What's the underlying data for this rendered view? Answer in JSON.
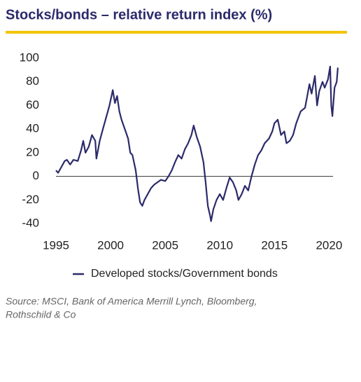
{
  "chart_data": {
    "type": "line",
    "title": "Stocks/bonds – relative return index (%)",
    "source": "Source: MSCI, Bank of America Merrill Lynch, Bloomberg,",
    "source_2": "Rothschild & Co",
    "xlim": [
      1995,
      2021
    ],
    "xticks": [
      1995,
      2000,
      2005,
      2010,
      2015,
      2020
    ],
    "ylim": [
      -40,
      100
    ],
    "yticks": [
      -40,
      -20,
      0,
      20,
      40,
      60,
      80,
      100
    ],
    "x": [
      1995.0,
      1995.2,
      1995.5,
      1995.8,
      1996.0,
      1996.3,
      1996.6,
      1997.0,
      1997.3,
      1997.5,
      1997.7,
      1998.0,
      1998.3,
      1998.6,
      1998.7,
      1999.0,
      1999.3,
      1999.6,
      1999.9,
      2000.2,
      2000.4,
      2000.6,
      2000.8,
      2001.0,
      2001.3,
      2001.6,
      2001.8,
      2002.0,
      2002.3,
      2002.5,
      2002.7,
      2002.9,
      2003.1,
      2003.4,
      2003.7,
      2004.0,
      2004.3,
      2004.6,
      2005.0,
      2005.3,
      2005.6,
      2005.9,
      2006.2,
      2006.5,
      2006.8,
      2007.1,
      2007.4,
      2007.6,
      2007.9,
      2008.2,
      2008.5,
      2008.7,
      2008.9,
      2009.1,
      2009.2,
      2009.4,
      2009.7,
      2010.0,
      2010.3,
      2010.6,
      2010.9,
      2011.2,
      2011.5,
      2011.7,
      2012.0,
      2012.3,
      2012.6,
      2012.9,
      2013.2,
      2013.5,
      2013.8,
      2014.1,
      2014.5,
      2014.8,
      2015.0,
      2015.3,
      2015.6,
      2015.9,
      2016.1,
      2016.4,
      2016.7,
      2017.0,
      2017.4,
      2017.8,
      2018.0,
      2018.2,
      2018.4,
      2018.7,
      2018.9,
      2019.1,
      2019.4,
      2019.6,
      2019.9,
      2020.1,
      2020.2,
      2020.3,
      2020.5,
      2020.7,
      2020.8
    ],
    "series": [
      {
        "name": "Developed stocks/Government bonds",
        "color": "#2b2a6b",
        "values": [
          5,
          3,
          8,
          13,
          14,
          10,
          14,
          13,
          22,
          30,
          20,
          25,
          35,
          30,
          15,
          30,
          40,
          50,
          60,
          73,
          62,
          68,
          55,
          48,
          40,
          32,
          20,
          18,
          5,
          -10,
          -22,
          -25,
          -20,
          -15,
          -10,
          -7,
          -5,
          -3,
          -4,
          0,
          5,
          12,
          18,
          15,
          23,
          28,
          35,
          43,
          33,
          25,
          12,
          -5,
          -25,
          -33,
          -38,
          -28,
          -20,
          -15,
          -20,
          -10,
          -1,
          -5,
          -12,
          -20,
          -15,
          -8,
          -12,
          0,
          10,
          18,
          22,
          28,
          32,
          38,
          45,
          48,
          35,
          38,
          28,
          30,
          35,
          45,
          55,
          58,
          68,
          78,
          70,
          85,
          60,
          72,
          80,
          75,
          82,
          93,
          60,
          51,
          75,
          80,
          92
        ]
      }
    ]
  }
}
